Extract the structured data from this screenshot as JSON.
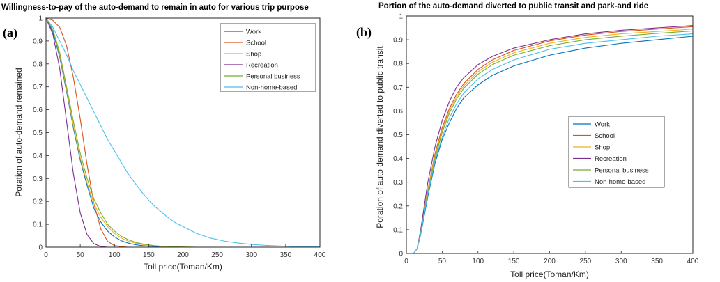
{
  "figure": {
    "panels": [
      {
        "letter": "(a)"
      },
      {
        "letter": "(b)"
      }
    ]
  },
  "chart_data": [
    {
      "type": "line",
      "title": "Willingness-to-pay of the auto-demand to remain in auto for various trip purpose",
      "xlabel": "Toll price(Toman/Km)",
      "ylabel": "Poration of auto-demand remained",
      "xlim": [
        0,
        400
      ],
      "ylim": [
        0,
        1
      ],
      "xticks": [
        0,
        50,
        100,
        150,
        200,
        250,
        300,
        350,
        400
      ],
      "yticks": [
        0,
        0.1,
        0.2,
        0.3,
        0.4,
        0.5,
        0.6,
        0.7,
        0.8,
        0.9,
        1
      ],
      "grid": false,
      "legend_position": "top-right",
      "x": [
        0,
        10,
        20,
        30,
        40,
        50,
        60,
        70,
        80,
        90,
        100,
        110,
        120,
        130,
        140,
        150,
        160,
        170,
        180,
        190,
        200,
        220,
        240,
        260,
        280,
        300,
        320,
        340,
        360,
        380,
        400
      ],
      "series": [
        {
          "name": "Work",
          "color": "#0072BD",
          "values": [
            1.0,
            0.94,
            0.83,
            0.68,
            0.52,
            0.38,
            0.27,
            0.17,
            0.11,
            0.07,
            0.045,
            0.028,
            0.018,
            0.011,
            0.007,
            0.004,
            0.003,
            0.002,
            0.001,
            0.0005,
            0,
            0,
            0,
            0,
            0,
            0,
            0,
            0,
            0,
            0,
            0
          ]
        },
        {
          "name": "School",
          "color": "#D95319",
          "values": [
            1.0,
            0.99,
            0.96,
            0.88,
            0.74,
            0.56,
            0.36,
            0.19,
            0.08,
            0.025,
            0.007,
            0.002,
            0,
            0,
            0,
            0,
            0,
            0,
            0,
            0,
            0,
            0,
            0,
            0,
            0,
            0,
            0,
            0,
            0,
            0,
            0
          ]
        },
        {
          "name": "Shop",
          "color": "#EDB120",
          "values": [
            1.0,
            0.95,
            0.84,
            0.69,
            0.53,
            0.39,
            0.28,
            0.19,
            0.13,
            0.09,
            0.06,
            0.04,
            0.027,
            0.018,
            0.012,
            0.008,
            0.005,
            0.003,
            0.002,
            0.001,
            0.0005,
            0,
            0,
            0,
            0,
            0,
            0,
            0,
            0,
            0,
            0
          ]
        },
        {
          "name": "Recreation",
          "color": "#7E2F8E",
          "values": [
            1.0,
            0.93,
            0.78,
            0.55,
            0.32,
            0.15,
            0.055,
            0.015,
            0.003,
            0,
            0,
            0,
            0,
            0,
            0,
            0,
            0,
            0,
            0,
            0,
            0,
            0,
            0,
            0,
            0,
            0,
            0,
            0,
            0,
            0,
            0
          ]
        },
        {
          "name": "Personal business",
          "color": "#77AC30",
          "values": [
            1.0,
            0.95,
            0.85,
            0.7,
            0.55,
            0.41,
            0.3,
            0.21,
            0.15,
            0.1,
            0.07,
            0.048,
            0.033,
            0.022,
            0.015,
            0.01,
            0.006,
            0.004,
            0.003,
            0.002,
            0.001,
            0,
            0,
            0,
            0,
            0,
            0,
            0,
            0,
            0,
            0
          ]
        },
        {
          "name": "Non-home-based",
          "color": "#4DBEEE",
          "values": [
            1.0,
            0.96,
            0.9,
            0.84,
            0.77,
            0.71,
            0.65,
            0.59,
            0.53,
            0.47,
            0.42,
            0.37,
            0.32,
            0.28,
            0.24,
            0.205,
            0.175,
            0.15,
            0.125,
            0.105,
            0.09,
            0.06,
            0.04,
            0.027,
            0.018,
            0.012,
            0.008,
            0.005,
            0.003,
            0.002,
            0.001
          ]
        }
      ]
    },
    {
      "type": "line",
      "title": "Portion of the auto-demand diverted to public transit and park-and ride",
      "xlabel": "Toll price(Toman/Km)",
      "ylabel": "Poration of auto demand diverted to public transit",
      "xlim": [
        0,
        400
      ],
      "ylim": [
        0,
        1
      ],
      "xticks": [
        0,
        50,
        100,
        150,
        200,
        250,
        300,
        350,
        400
      ],
      "yticks": [
        0,
        0.1,
        0.2,
        0.3,
        0.4,
        0.5,
        0.6,
        0.7,
        0.8,
        0.9,
        1
      ],
      "grid": false,
      "legend_position": "center-right",
      "x": [
        10,
        15,
        20,
        25,
        30,
        40,
        50,
        60,
        70,
        80,
        100,
        120,
        150,
        200,
        250,
        300,
        350,
        400
      ],
      "series": [
        {
          "name": "Work",
          "color": "#0072BD",
          "values": [
            0,
            0.02,
            0.08,
            0.16,
            0.24,
            0.38,
            0.48,
            0.55,
            0.61,
            0.655,
            0.71,
            0.75,
            0.79,
            0.835,
            0.865,
            0.885,
            0.9,
            0.915
          ]
        },
        {
          "name": "School",
          "color": "#D95319",
          "values": [
            0,
            0.02,
            0.09,
            0.18,
            0.27,
            0.42,
            0.53,
            0.61,
            0.67,
            0.715,
            0.775,
            0.815,
            0.855,
            0.895,
            0.92,
            0.935,
            0.945,
            0.955
          ]
        },
        {
          "name": "Shop",
          "color": "#EDB120",
          "values": [
            0,
            0.02,
            0.09,
            0.18,
            0.27,
            0.41,
            0.52,
            0.6,
            0.66,
            0.705,
            0.765,
            0.805,
            0.845,
            0.885,
            0.91,
            0.925,
            0.935,
            0.945
          ]
        },
        {
          "name": "Recreation",
          "color": "#7E2F8E",
          "values": [
            0,
            0.02,
            0.1,
            0.2,
            0.3,
            0.45,
            0.56,
            0.64,
            0.7,
            0.74,
            0.795,
            0.83,
            0.865,
            0.9,
            0.925,
            0.94,
            0.95,
            0.96
          ]
        },
        {
          "name": "Personal business",
          "color": "#77AC30",
          "values": [
            0,
            0.02,
            0.09,
            0.175,
            0.26,
            0.4,
            0.51,
            0.59,
            0.65,
            0.695,
            0.755,
            0.795,
            0.835,
            0.875,
            0.9,
            0.915,
            0.927,
            0.937
          ]
        },
        {
          "name": "Non-home-based",
          "color": "#4DBEEE",
          "values": [
            0,
            0.02,
            0.085,
            0.17,
            0.25,
            0.39,
            0.49,
            0.57,
            0.63,
            0.675,
            0.735,
            0.775,
            0.815,
            0.86,
            0.885,
            0.9,
            0.915,
            0.925
          ]
        }
      ]
    }
  ]
}
